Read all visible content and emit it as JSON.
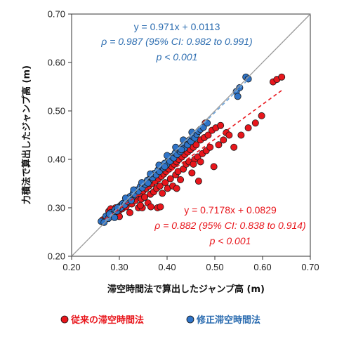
{
  "chart_data": {
    "type": "scatter",
    "xlabel": "滞空時間法で算出したジャンプ高 (m)",
    "ylabel": "力積法で算出したジャンプ高 (m)",
    "xlim": [
      0.2,
      0.7
    ],
    "ylim": [
      0.2,
      0.7
    ],
    "x_ticks": [
      "0.20",
      "0.30",
      "0.40",
      "0.50",
      "0.60",
      "0.70"
    ],
    "y_ticks": [
      "0.20",
      "0.30",
      "0.40",
      "0.50",
      "0.60",
      "0.70"
    ],
    "identity_line": true,
    "legend_position": "bottom",
    "series": [
      {
        "name": "従来の滞空時間法",
        "color": "#e8161c",
        "trend": {
          "slope": 0.7178,
          "intercept": 0.0829,
          "x_range": [
            0.27,
            0.64
          ]
        },
        "annotation": [
          "y = 0.7178x + 0.0829",
          "ρ = 0.882 (95% CI: 0.838 to 0.914)",
          "p < 0.001"
        ],
        "points": [
          [
            0.265,
            0.275
          ],
          [
            0.272,
            0.28
          ],
          [
            0.278,
            0.293
          ],
          [
            0.283,
            0.285
          ],
          [
            0.288,
            0.29
          ],
          [
            0.292,
            0.3
          ],
          [
            0.296,
            0.288
          ],
          [
            0.3,
            0.295
          ],
          [
            0.303,
            0.305
          ],
          [
            0.306,
            0.298
          ],
          [
            0.31,
            0.31
          ],
          [
            0.314,
            0.302
          ],
          [
            0.318,
            0.312
          ],
          [
            0.322,
            0.318
          ],
          [
            0.326,
            0.308
          ],
          [
            0.33,
            0.32
          ],
          [
            0.333,
            0.315
          ],
          [
            0.336,
            0.325
          ],
          [
            0.34,
            0.3
          ],
          [
            0.343,
            0.33
          ],
          [
            0.346,
            0.318
          ],
          [
            0.35,
            0.335
          ],
          [
            0.353,
            0.322
          ],
          [
            0.356,
            0.34
          ],
          [
            0.36,
            0.31
          ],
          [
            0.362,
            0.345
          ],
          [
            0.365,
            0.328
          ],
          [
            0.368,
            0.35
          ],
          [
            0.372,
            0.333
          ],
          [
            0.375,
            0.355
          ],
          [
            0.378,
            0.34
          ],
          [
            0.38,
            0.3
          ],
          [
            0.382,
            0.36
          ],
          [
            0.385,
            0.345
          ],
          [
            0.388,
            0.365
          ],
          [
            0.39,
            0.33
          ],
          [
            0.393,
            0.37
          ],
          [
            0.396,
            0.352
          ],
          [
            0.398,
            0.375
          ],
          [
            0.401,
            0.34
          ],
          [
            0.404,
            0.38
          ],
          [
            0.407,
            0.36
          ],
          [
            0.41,
            0.385
          ],
          [
            0.412,
            0.345
          ],
          [
            0.415,
            0.39
          ],
          [
            0.418,
            0.368
          ],
          [
            0.42,
            0.395
          ],
          [
            0.423,
            0.375
          ],
          [
            0.425,
            0.4
          ],
          [
            0.428,
            0.358
          ],
          [
            0.431,
            0.405
          ],
          [
            0.434,
            0.38
          ],
          [
            0.437,
            0.41
          ],
          [
            0.44,
            0.39
          ],
          [
            0.443,
            0.415
          ],
          [
            0.446,
            0.395
          ],
          [
            0.449,
            0.42
          ],
          [
            0.452,
            0.372
          ],
          [
            0.455,
            0.425
          ],
          [
            0.458,
            0.4
          ],
          [
            0.461,
            0.43
          ],
          [
            0.464,
            0.405
          ],
          [
            0.466,
            0.355
          ],
          [
            0.47,
            0.44
          ],
          [
            0.474,
            0.412
          ],
          [
            0.478,
            0.445
          ],
          [
            0.482,
            0.418
          ],
          [
            0.486,
            0.45
          ],
          [
            0.49,
            0.425
          ],
          [
            0.494,
            0.46
          ],
          [
            0.498,
            0.385
          ],
          [
            0.502,
            0.465
          ],
          [
            0.508,
            0.43
          ],
          [
            0.512,
            0.47
          ],
          [
            0.518,
            0.44
          ],
          [
            0.524,
            0.455
          ],
          [
            0.53,
            0.45
          ],
          [
            0.54,
            0.425
          ],
          [
            0.555,
            0.45
          ],
          [
            0.57,
            0.465
          ],
          [
            0.585,
            0.475
          ],
          [
            0.598,
            0.49
          ],
          [
            0.622,
            0.56
          ],
          [
            0.63,
            0.565
          ],
          [
            0.64,
            0.57
          ],
          [
            0.282,
            0.298
          ],
          [
            0.348,
            0.3
          ],
          [
            0.386,
            0.302
          ],
          [
            0.42,
            0.34
          ],
          [
            0.455,
            0.39
          ],
          [
            0.47,
            0.395
          ],
          [
            0.3,
            0.282
          ],
          [
            0.322,
            0.29
          ],
          [
            0.344,
            0.305
          ],
          [
            0.366,
            0.302
          ],
          [
            0.48,
            0.475
          ]
        ]
      },
      {
        "name": "修正滞空時間法",
        "color": "#2f74c8",
        "trend": {
          "slope": 0.971,
          "intercept": 0.0113,
          "x_range": [
            0.27,
            0.57
          ]
        },
        "annotation": [
          "y = 0.971x + 0.0113",
          "ρ = 0.987 (95% CI: 0.982 to 0.991)",
          "p < 0.001"
        ],
        "points": [
          [
            0.262,
            0.272
          ],
          [
            0.268,
            0.27
          ],
          [
            0.272,
            0.283
          ],
          [
            0.277,
            0.278
          ],
          [
            0.282,
            0.29
          ],
          [
            0.287,
            0.287
          ],
          [
            0.291,
            0.296
          ],
          [
            0.295,
            0.293
          ],
          [
            0.299,
            0.302
          ],
          [
            0.303,
            0.3
          ],
          [
            0.307,
            0.309
          ],
          [
            0.311,
            0.306
          ],
          [
            0.315,
            0.316
          ],
          [
            0.318,
            0.313
          ],
          [
            0.322,
            0.323
          ],
          [
            0.326,
            0.32
          ],
          [
            0.329,
            0.33
          ],
          [
            0.333,
            0.327
          ],
          [
            0.337,
            0.337
          ],
          [
            0.34,
            0.334
          ],
          [
            0.344,
            0.344
          ],
          [
            0.348,
            0.341
          ],
          [
            0.351,
            0.35
          ],
          [
            0.355,
            0.348
          ],
          [
            0.359,
            0.357
          ],
          [
            0.362,
            0.355
          ],
          [
            0.366,
            0.364
          ],
          [
            0.37,
            0.362
          ],
          [
            0.373,
            0.371
          ],
          [
            0.377,
            0.368
          ],
          [
            0.381,
            0.378
          ],
          [
            0.384,
            0.375
          ],
          [
            0.388,
            0.385
          ],
          [
            0.392,
            0.382
          ],
          [
            0.395,
            0.392
          ],
          [
            0.399,
            0.389
          ],
          [
            0.403,
            0.399
          ],
          [
            0.406,
            0.396
          ],
          [
            0.41,
            0.406
          ],
          [
            0.414,
            0.403
          ],
          [
            0.417,
            0.413
          ],
          [
            0.421,
            0.41
          ],
          [
            0.425,
            0.419
          ],
          [
            0.428,
            0.416
          ],
          [
            0.432,
            0.426
          ],
          [
            0.436,
            0.423
          ],
          [
            0.439,
            0.433
          ],
          [
            0.443,
            0.43
          ],
          [
            0.447,
            0.44
          ],
          [
            0.45,
            0.437
          ],
          [
            0.454,
            0.447
          ],
          [
            0.458,
            0.444
          ],
          [
            0.462,
            0.452
          ],
          [
            0.466,
            0.458
          ],
          [
            0.47,
            0.462
          ],
          [
            0.476,
            0.466
          ],
          [
            0.484,
            0.475
          ],
          [
            0.545,
            0.54
          ],
          [
            0.548,
            0.53
          ],
          [
            0.552,
            0.548
          ],
          [
            0.565,
            0.57
          ],
          [
            0.57,
            0.566
          ],
          [
            0.296,
            0.3
          ],
          [
            0.33,
            0.337
          ],
          [
            0.365,
            0.37
          ],
          [
            0.4,
            0.408
          ],
          [
            0.434,
            0.44
          ],
          [
            0.279,
            0.287
          ],
          [
            0.313,
            0.32
          ],
          [
            0.347,
            0.352
          ],
          [
            0.383,
            0.388
          ],
          [
            0.418,
            0.425
          ],
          [
            0.452,
            0.456
          ],
          [
            0.29,
            0.28
          ],
          [
            0.325,
            0.315
          ],
          [
            0.36,
            0.351
          ],
          [
            0.395,
            0.385
          ],
          [
            0.43,
            0.42
          ]
        ]
      }
    ]
  }
}
